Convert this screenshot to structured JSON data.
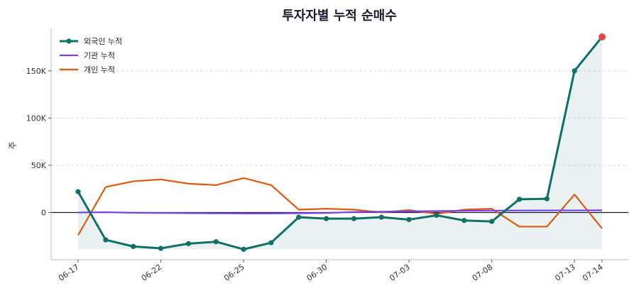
{
  "chart_data": {
    "type": "line",
    "title": "투자자별 누적 순매수",
    "xlabel": "",
    "ylabel": "주",
    "ylim": [
      -50000,
      195000
    ],
    "y_ticks": [
      0,
      50000,
      100000,
      150000
    ],
    "y_tick_labels": [
      "0",
      "50K",
      "100K",
      "150K"
    ],
    "x": [
      "06-17",
      "06-18",
      "06-19",
      "06-22",
      "06-23",
      "06-24",
      "06-25",
      "06-26",
      "06-29",
      "06-30",
      "07-01",
      "07-02",
      "07-03",
      "07-06",
      "07-07",
      "07-08",
      "07-09",
      "07-10",
      "07-13",
      "07-14"
    ],
    "x_tick_labels": [
      "06-17",
      "06-22",
      "06-25",
      "06-30",
      "07-03",
      "07-08",
      "07-13",
      "07-14"
    ],
    "series": [
      {
        "name": "외국인 누적",
        "color": "#0f7068",
        "values": [
          22000,
          -29000,
          -36000,
          -38000,
          -33000,
          -31000,
          -39000,
          -32000,
          -5000,
          -6500,
          -6500,
          -5000,
          -7500,
          -3000,
          -8500,
          -9500,
          14000,
          14500,
          150000,
          186000
        ]
      },
      {
        "name": "기관 누적",
        "color": "#7b3fe4",
        "values": [
          0,
          300,
          -300,
          -500,
          -700,
          -900,
          -1000,
          -1000,
          -800,
          -500,
          500,
          800,
          1200,
          1500,
          1800,
          2000,
          2100,
          2200,
          2200,
          2300
        ]
      },
      {
        "name": "개인 누적",
        "color": "#e05a10",
        "values": [
          -24000,
          27000,
          33000,
          35000,
          30500,
          29000,
          36500,
          29000,
          3000,
          4000,
          3000,
          100,
          2500,
          -1500,
          3000,
          4000,
          -15000,
          -15000,
          19000,
          -17000
        ]
      }
    ],
    "grid": true,
    "legend": "top-left",
    "highlight_color": "#e84545"
  }
}
